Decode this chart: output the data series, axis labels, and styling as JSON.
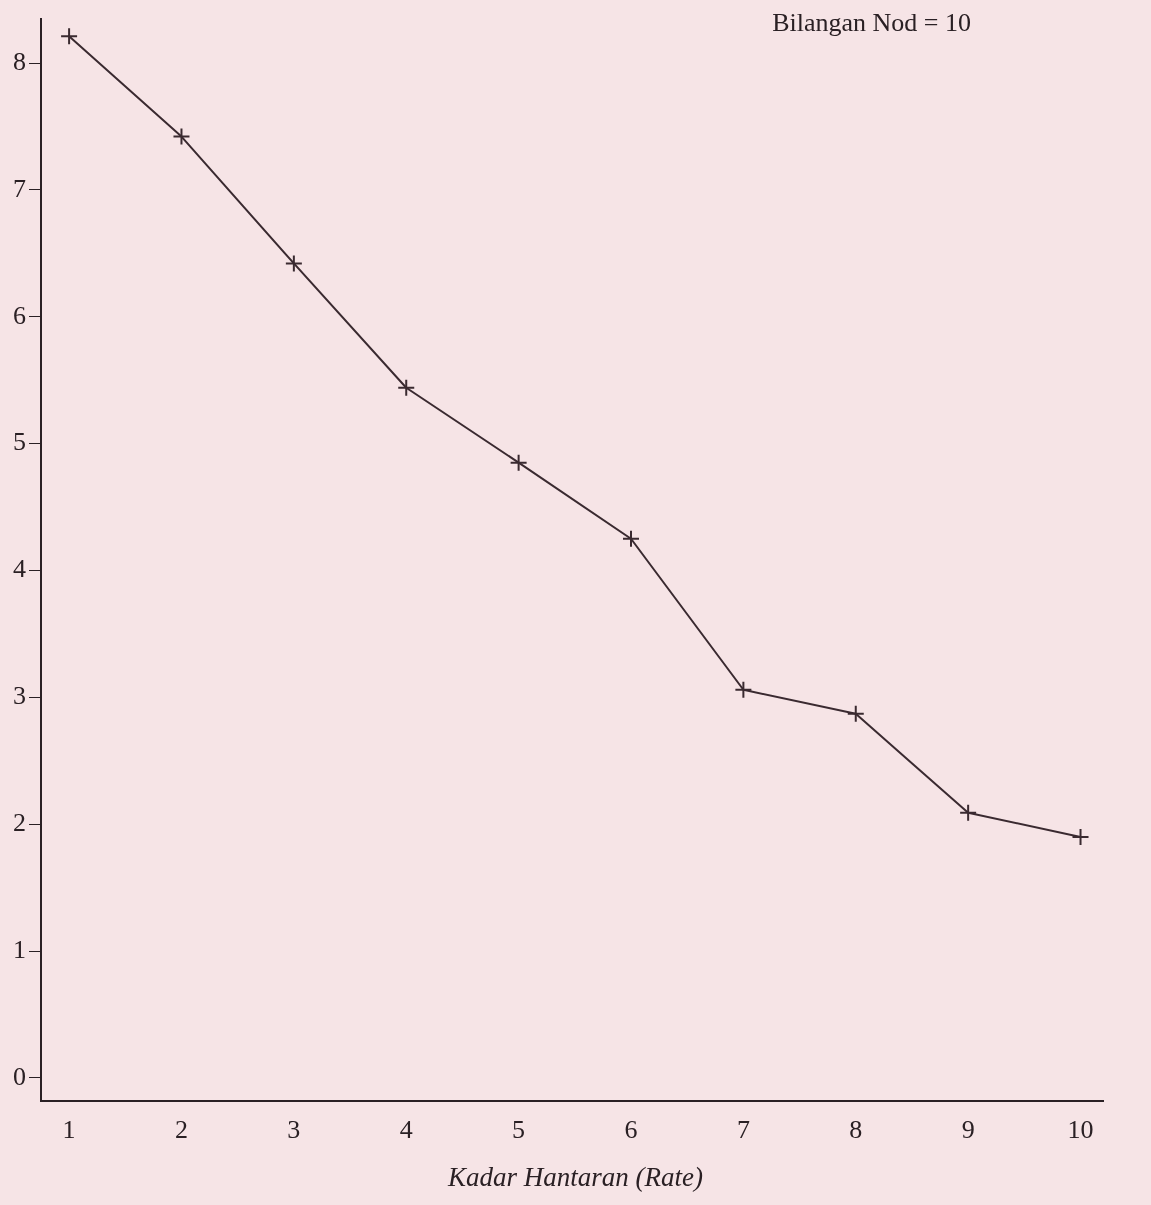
{
  "chart_data": {
    "type": "line",
    "xlabel": "Kadar Hantaran (Rate)",
    "annotations": [
      "Bilangan Nod = 10"
    ],
    "x": [
      1,
      2,
      3,
      4,
      5,
      6,
      7,
      8,
      9,
      10
    ],
    "series": [
      {
        "color": "#3a2a30",
        "values": [
          8.21,
          7.42,
          6.42,
          5.44,
          4.85,
          4.25,
          3.06,
          2.87,
          2.09,
          1.9
        ]
      }
    ],
    "xlim": [
      0.75,
      10.2
    ],
    "xticks": [
      1,
      2,
      3,
      4,
      5,
      6,
      7,
      8,
      9,
      10
    ],
    "ylim": [
      -0.18,
      8.35
    ],
    "yticks": [
      0,
      1,
      2,
      3,
      4,
      5,
      6,
      7,
      8
    ],
    "grid": false,
    "legend": false,
    "marker": "cross",
    "line_style": "solid"
  }
}
